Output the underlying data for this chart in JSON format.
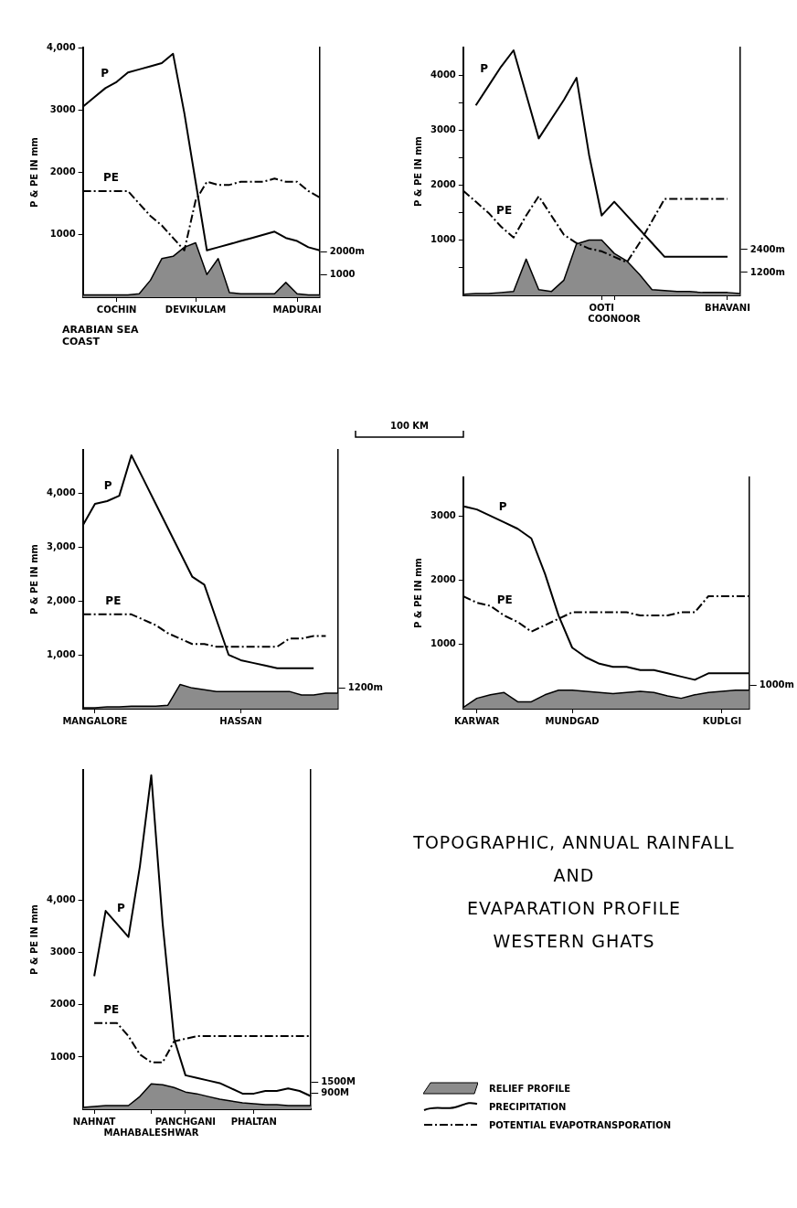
{
  "chart_data": [
    {
      "type": "line",
      "ylabel": "P & PE IN mm",
      "categories": [
        null,
        null,
        null,
        "COCHIN",
        null,
        null,
        null,
        null,
        null,
        null,
        "DEVIKULAM",
        null,
        null,
        null,
        null,
        null,
        null,
        null,
        null,
        "MADURAI",
        null,
        null
      ],
      "ylim": [
        0,
        4000
      ],
      "yticks": [
        1000,
        2000,
        3000,
        {
          "value": 4000,
          "label": "4,000"
        }
      ],
      "y2lim": [
        0,
        11000
      ],
      "y2ticks": [
        {
          "value": 1000,
          "label": "1000"
        },
        {
          "value": 2000,
          "label": "2000m"
        }
      ],
      "grid": false,
      "legend": false,
      "annotations": [
        "ARABIAN SEA COAST"
      ],
      "series": [
        {
          "type": "area",
          "axis": "y2",
          "color": "#8c8c8c",
          "values": [
            100,
            100,
            100,
            100,
            100,
            150,
            750,
            1700,
            1800,
            2200,
            2400,
            1000,
            1700,
            200,
            150,
            150,
            150,
            150,
            650,
            150,
            100,
            100
          ]
        },
        {
          "name": "P",
          "type": "line",
          "color": "#000000",
          "line_style": "solid",
          "values": [
            3050,
            3200,
            3350,
            3450,
            3600,
            3650,
            3700,
            3750,
            3900,
            2950,
            1850,
            750,
            800,
            850,
            900,
            950,
            1000,
            1050,
            950,
            900,
            800,
            750
          ]
        },
        {
          "name": "PE",
          "type": "line",
          "color": "#000000",
          "line_style": "dashed",
          "values": [
            1700,
            1700,
            1700,
            1700,
            1700,
            1500,
            1300,
            1150,
            950,
            750,
            1550,
            1850,
            1800,
            1800,
            1850,
            1850,
            1850,
            1900,
            1850,
            1850,
            1700,
            1600
          ]
        }
      ]
    },
    {
      "type": "line",
      "ylabel": "P & PE IN mm",
      "categories": [
        null,
        null,
        null,
        null,
        null,
        null,
        null,
        null,
        null,
        null,
        null,
        "OOTI",
        "COONOOR",
        null,
        null,
        null,
        null,
        null,
        null,
        null,
        null,
        "BHAVANI",
        null
      ],
      "ylim": [
        0,
        4500
      ],
      "yticks": [
        {
          "value": 500,
          "label": null
        },
        1000,
        {
          "value": 1500,
          "label": null
        },
        2000,
        {
          "value": 2500,
          "label": null
        },
        3000,
        {
          "value": 3500,
          "label": null
        },
        4000
      ],
      "y2lim": [
        0,
        13000
      ],
      "y2ticks": [
        {
          "value": 1200,
          "label": "1200m"
        },
        {
          "value": 2400,
          "label": "2400m"
        }
      ],
      "grid": false,
      "legend": false,
      "series": [
        {
          "type": "area",
          "axis": "y2",
          "color": "#8c8c8c",
          "values": [
            50,
            100,
            100,
            150,
            200,
            1900,
            300,
            200,
            800,
            2700,
            2900,
            2900,
            2200,
            1800,
            1100,
            300,
            250,
            200,
            200,
            150,
            150,
            150,
            100
          ]
        },
        {
          "name": "P",
          "type": "line",
          "color": "#000000",
          "line_style": "solid",
          "values": [
            null,
            3450,
            3800,
            4150,
            4450,
            3650,
            2850,
            3200,
            3550,
            3950,
            2550,
            1450,
            1700,
            1450,
            1200,
            950,
            700,
            700,
            700,
            700,
            700,
            700,
            null
          ]
        },
        {
          "name": "PE",
          "type": "line",
          "color": "#000000",
          "line_style": "dashed",
          "values": [
            1900,
            1700,
            1500,
            1250,
            1050,
            1450,
            1800,
            1450,
            1100,
            950,
            850,
            800,
            700,
            600,
            950,
            1350,
            1750,
            1750,
            1750,
            1750,
            1750,
            1750,
            null
          ]
        }
      ]
    },
    {
      "type": "line",
      "ylabel": "P & PE IN mm",
      "categories": [
        null,
        "MANGALORE",
        null,
        null,
        null,
        null,
        null,
        null,
        null,
        null,
        null,
        null,
        null,
        "HASSAN",
        null,
        null,
        null,
        null,
        null,
        null,
        null,
        null
      ],
      "ylim": [
        0,
        4800
      ],
      "yticks": [
        {
          "value": 1000,
          "label": "1,000"
        },
        {
          "value": 2000,
          "label": "2,000"
        },
        {
          "value": 3000,
          "label": "3,000"
        },
        {
          "value": 4000,
          "label": "4,000"
        }
      ],
      "y2lim": [
        0,
        15000
      ],
      "y2ticks": [
        {
          "value": 1200,
          "label": "1200m"
        }
      ],
      "grid": false,
      "legend": false,
      "series": [
        {
          "type": "area",
          "axis": "y2",
          "color": "#8c8c8c",
          "values": [
            50,
            50,
            100,
            100,
            150,
            150,
            150,
            200,
            1400,
            1200,
            1100,
            1000,
            1000,
            1000,
            1000,
            1000,
            1000,
            1000,
            800,
            800,
            900,
            900
          ]
        },
        {
          "name": "P",
          "type": "line",
          "color": "#000000",
          "line_style": "solid",
          "values": [
            3400,
            3800,
            3850,
            3950,
            4700,
            4250,
            3800,
            3350,
            2900,
            2450,
            2300,
            1650,
            1000,
            900,
            850,
            800,
            750,
            750,
            750,
            750,
            null,
            null
          ]
        },
        {
          "name": "PE",
          "type": "line",
          "color": "#000000",
          "line_style": "dashed",
          "values": [
            1750,
            1750,
            1750,
            1750,
            1750,
            1650,
            1550,
            1400,
            1300,
            1200,
            1200,
            1150,
            1150,
            1150,
            1150,
            1150,
            1150,
            1300,
            1300,
            1350,
            1350,
            null
          ]
        }
      ]
    },
    {
      "type": "line",
      "ylabel": "P & PE IN mm",
      "categories": [
        null,
        "KARWAR",
        null,
        null,
        null,
        null,
        null,
        null,
        "MUNDGAD",
        null,
        null,
        null,
        null,
        null,
        null,
        null,
        null,
        null,
        null,
        "KUDLGI",
        null,
        null
      ],
      "ylim": [
        0,
        3600
      ],
      "yticks": [
        1000,
        2000,
        3000
      ],
      "y2lim": [
        0,
        10000
      ],
      "y2ticks": [
        {
          "value": 1000,
          "label": "1000m"
        }
      ],
      "grid": false,
      "legend": false,
      "series": [
        {
          "type": "area",
          "axis": "y2",
          "color": "#8c8c8c",
          "values": [
            50,
            450,
            600,
            700,
            300,
            300,
            600,
            800,
            800,
            750,
            700,
            650,
            700,
            750,
            700,
            550,
            450,
            600,
            700,
            750,
            800,
            800
          ]
        },
        {
          "name": "P",
          "type": "line",
          "color": "#000000",
          "line_style": "solid",
          "values": [
            3150,
            3100,
            3000,
            2900,
            2800,
            2650,
            2100,
            1450,
            950,
            800,
            700,
            650,
            650,
            600,
            600,
            550,
            500,
            450,
            550,
            550,
            550,
            550
          ]
        },
        {
          "name": "PE",
          "type": "line",
          "color": "#000000",
          "line_style": "dashed",
          "values": [
            1750,
            1650,
            1600,
            1450,
            1350,
            1200,
            1300,
            1400,
            1500,
            1500,
            1500,
            1500,
            1500,
            1450,
            1450,
            1450,
            1500,
            1500,
            1750,
            1750,
            1750,
            1750
          ]
        }
      ]
    },
    {
      "type": "line",
      "ylabel": "P & PE IN mm",
      "categories": [
        null,
        "NAHNAT",
        null,
        null,
        null,
        null,
        "MAHABALESHWAR",
        null,
        null,
        "PANCHGANI",
        null,
        null,
        null,
        null,
        null,
        "PHALTAN",
        null,
        null,
        null,
        null,
        null
      ],
      "ylim": [
        0,
        6500
      ],
      "yticks": [
        1000,
        2000,
        3000,
        {
          "value": 4000,
          "label": "4,000"
        }
      ],
      "y2lim": [
        0,
        18700
      ],
      "y2ticks": [
        {
          "value": 900,
          "label": "900M"
        },
        {
          "value": 1500,
          "label": "1500M"
        }
      ],
      "grid": false,
      "legend": false,
      "series": [
        {
          "type": "area",
          "axis": "y2",
          "color": "#8c8c8c",
          "values": [
            100,
            150,
            200,
            200,
            200,
            700,
            1400,
            1350,
            1200,
            950,
            850,
            700,
            550,
            450,
            350,
            300,
            250,
            250,
            200,
            200,
            200
          ]
        },
        {
          "name": "P",
          "type": "line",
          "color": "#000000",
          "line_style": "solid",
          "values": [
            null,
            2550,
            3800,
            3550,
            3300,
            4650,
            6400,
            3550,
            1350,
            650,
            600,
            550,
            500,
            400,
            300,
            300,
            350,
            350,
            400,
            350,
            250
          ]
        },
        {
          "name": "PE",
          "type": "line",
          "color": "#000000",
          "line_style": "dashed",
          "values": [
            null,
            1650,
            1650,
            1650,
            1400,
            1050,
            900,
            900,
            1300,
            1350,
            1400,
            1400,
            1400,
            1400,
            1400,
            1400,
            1400,
            1400,
            1400,
            1400,
            1400
          ]
        }
      ]
    },
    {
      "type": "other",
      "title": "TOPOGRAPHIC, ANNUAL RAINFALL\nAND\nEVAPARATION PROFILE\nWESTERN GHATS",
      "annotations": [
        "100 KM",
        "RELIEF PROFILE",
        "PRECIPITATION",
        "POTENTIAL EVAPOTRANSPORATION"
      ]
    }
  ]
}
